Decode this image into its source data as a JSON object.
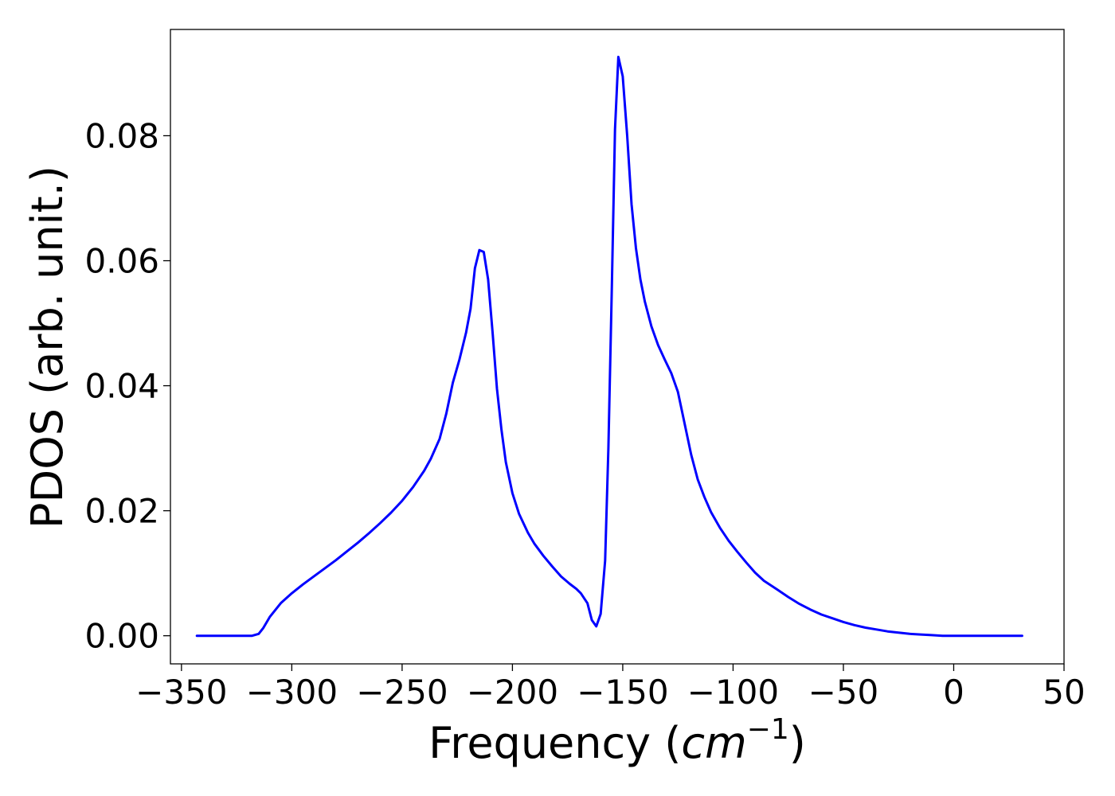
{
  "chart_data": {
    "type": "line",
    "title": "",
    "xlabel": {
      "prefix": "Frequency (",
      "unit": "cm",
      "superscript": "−1",
      "suffix": ")"
    },
    "ylabel": "PDOS (arb. unit.)",
    "xlim": [
      -355,
      50
    ],
    "ylim": [
      -0.0045,
      0.097
    ],
    "xticks": [
      -350,
      -300,
      -250,
      -200,
      -150,
      -100,
      -50,
      0,
      50
    ],
    "xtick_labels": [
      "−350",
      "−300",
      "−250",
      "−200",
      "−150",
      "−100",
      "−50",
      "0",
      "50"
    ],
    "yticks": [
      0.0,
      0.02,
      0.04,
      0.06,
      0.08
    ],
    "ytick_labels": [
      "0.00",
      "0.02",
      "0.04",
      "0.06",
      "0.08"
    ],
    "grid": false,
    "series": [
      {
        "color": "#0000ff",
        "x": [
          -343,
          -335,
          -325,
          -318,
          -315,
          -313,
          -310,
          -305,
          -300,
          -295,
          -290,
          -285,
          -280,
          -275,
          -270,
          -265,
          -260,
          -255,
          -250,
          -245,
          -240,
          -237,
          -233,
          -230,
          -227,
          -224,
          -221,
          -219,
          -217,
          -215,
          -213,
          -211,
          -209,
          -207,
          -205,
          -203,
          -200,
          -197,
          -193,
          -190,
          -186,
          -182,
          -178,
          -174,
          -171,
          -169,
          -166,
          -164,
          -162,
          -160,
          -158,
          -156.5,
          -155,
          -153.5,
          -152,
          -150,
          -148,
          -146,
          -144,
          -142,
          -140,
          -137,
          -134,
          -131,
          -128,
          -125,
          -122,
          -119,
          -116,
          -113,
          -110,
          -106,
          -102,
          -98,
          -94,
          -90,
          -86,
          -80,
          -75,
          -70,
          -65,
          -60,
          -55,
          -50,
          -45,
          -40,
          -35,
          -30,
          -25,
          -20,
          -15,
          -10,
          -5,
          0,
          10,
          20,
          31
        ],
        "y": [
          0.0,
          0.0,
          0.0,
          0.0,
          0.0003,
          0.0012,
          0.003,
          0.0052,
          0.0068,
          0.0082,
          0.0095,
          0.0108,
          0.0121,
          0.0135,
          0.0149,
          0.0164,
          0.018,
          0.0197,
          0.0216,
          0.0238,
          0.0264,
          0.0283,
          0.0315,
          0.0355,
          0.0405,
          0.0442,
          0.0485,
          0.0523,
          0.0588,
          0.0617,
          0.0614,
          0.057,
          0.0485,
          0.0395,
          0.033,
          0.0278,
          0.0228,
          0.0195,
          0.0165,
          0.0147,
          0.0128,
          0.0111,
          0.0095,
          0.0083,
          0.0075,
          0.0068,
          0.0052,
          0.0025,
          0.0015,
          0.0035,
          0.012,
          0.03,
          0.055,
          0.081,
          0.0926,
          0.0895,
          0.08,
          0.069,
          0.062,
          0.057,
          0.0535,
          0.0495,
          0.0465,
          0.0442,
          0.042,
          0.039,
          0.034,
          0.029,
          0.025,
          0.0222,
          0.0198,
          0.0173,
          0.0152,
          0.0134,
          0.0117,
          0.0101,
          0.0088,
          0.0074,
          0.0062,
          0.0051,
          0.0042,
          0.0034,
          0.0028,
          0.0022,
          0.0017,
          0.0013,
          0.001,
          0.0007,
          0.0005,
          0.0003,
          0.0002,
          0.0001,
          0.0,
          0.0,
          0.0,
          0.0,
          0.0
        ]
      }
    ]
  }
}
